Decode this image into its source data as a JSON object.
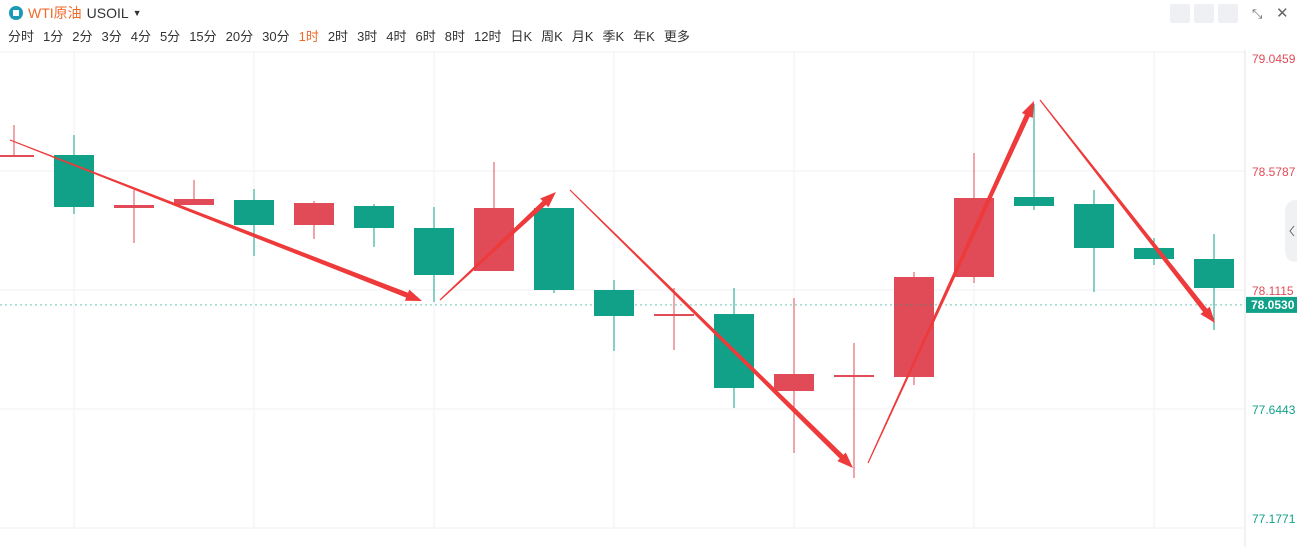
{
  "header": {
    "name": "WTI原油",
    "symbol": "USOIL",
    "timeframes": [
      "分时",
      "1分",
      "2分",
      "3分",
      "4分",
      "5分",
      "15分",
      "20分",
      "30分",
      "1时",
      "2时",
      "3时",
      "4时",
      "6时",
      "8时",
      "12时",
      "日K",
      "周K",
      "月K",
      "季K",
      "年K",
      "更多"
    ],
    "active_timeframe": 9
  },
  "chart_data": {
    "type": "candlestick",
    "up_color": "#e04b57",
    "down_color": "#11a188",
    "open": [
      78.6337,
      78.6415,
      78.4334,
      78.4452,
      78.4648,
      78.3667,
      78.4413,
      78.3549,
      78.1861,
      78.4334,
      78.1115,
      78.0094,
      78.0172,
      77.7149,
      77.7699,
      77.7699,
      78.1625,
      78.4766,
      78.4491,
      78.2764,
      78.2332
    ],
    "high": [
      78.7593,
      78.72,
      78.5041,
      78.5433,
      78.508,
      78.4609,
      78.4491,
      78.4373,
      78.614,
      78.4334,
      78.1507,
      78.1193,
      78.1193,
      78.0801,
      77.9034,
      78.1821,
      78.6494,
      78.8417,
      78.5041,
      78.3156,
      78.3313
    ],
    "low": [
      78.6337,
      78.4099,
      78.296,
      78.4452,
      78.245,
      78.3117,
      78.2803,
      78.0644,
      78.1861,
      78.0997,
      77.872,
      77.8759,
      77.6482,
      77.4715,
      77.3733,
      77.7385,
      78.139,
      78.4256,
      78.1036,
      78.2096,
      77.9544
    ],
    "close": [
      78.6415,
      78.4373,
      78.4452,
      78.4688,
      78.3667,
      78.453,
      78.3549,
      78.1704,
      78.4334,
      78.1115,
      78.0094,
      78.0172,
      77.7267,
      77.7817,
      77.7777,
      78.1625,
      78.4727,
      78.4413,
      78.2764,
      78.2332,
      78.1193
    ],
    "ylim": [
      77.1771,
      79.0459
    ],
    "yticks": [
      79.0459,
      78.5787,
      78.1115,
      77.6443,
      77.1771
    ],
    "last_price": {
      "value": 78.053,
      "label": "78.0530"
    },
    "grid": true
  }
}
